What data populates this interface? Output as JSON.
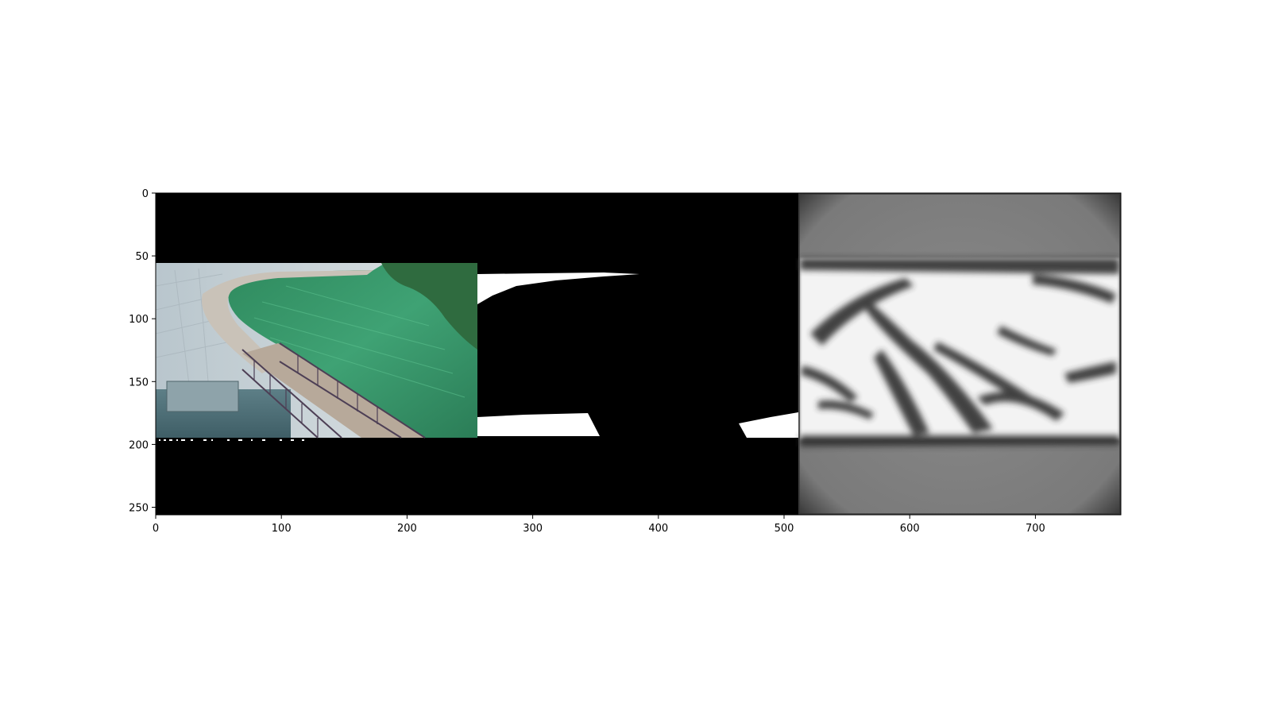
{
  "chart_data": {
    "type": "image",
    "xlim": [
      0,
      768
    ],
    "ylim": [
      256,
      0
    ],
    "x_ticks": [
      0,
      100,
      200,
      300,
      400,
      500,
      600,
      700
    ],
    "y_ticks": [
      0,
      50,
      100,
      150,
      200,
      250
    ],
    "x_tick_labels": [
      "0",
      "100",
      "200",
      "300",
      "400",
      "500",
      "600",
      "700"
    ],
    "y_tick_labels": [
      "0",
      "50",
      "100",
      "150",
      "200",
      "250"
    ],
    "grid": false,
    "panels": [
      {
        "name": "photo",
        "x_range": [
          0,
          256
        ],
        "content_y_range": [
          56,
          195
        ],
        "description_colors": {
          "grass": "#3f9a6e",
          "sky_wall": "#c8d4da",
          "water": "#4f6f78",
          "bridge": "#5a4a5e"
        }
      },
      {
        "name": "mask",
        "x_range": [
          256,
          512
        ],
        "background": "#000000",
        "foreground": "#ffffff"
      },
      {
        "name": "prediction",
        "x_range": [
          512,
          768
        ],
        "band_y_range": [
          56,
          195
        ],
        "band_color": "#f2f2f2",
        "outside_color": "#7e7e7e"
      }
    ]
  },
  "colors": {
    "background": "#ffffff",
    "axes_frame": "#000000",
    "image_background": "#000000"
  }
}
